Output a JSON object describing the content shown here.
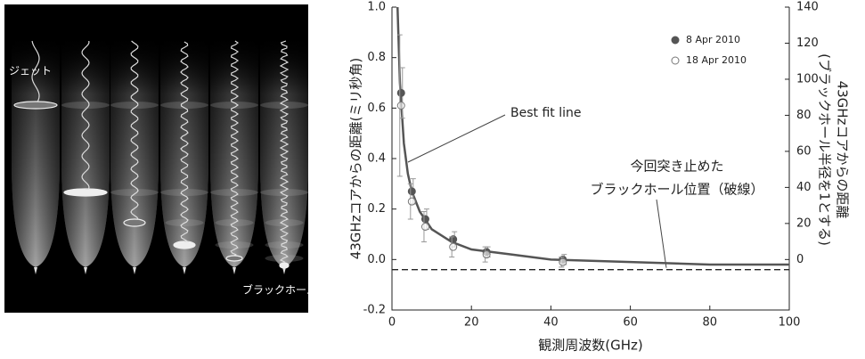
{
  "illustration": {
    "labels": [
      "ジェット",
      "ブラックホール"
    ]
  },
  "chart_data": {
    "type": "scatter",
    "xlabel": "観測周波数(GHz)",
    "ylabel": "43GHzコアからの距離(ミリ秒角)",
    "y2label": [
      "43GHzコアからの距離",
      "(ブラックホール半径を1とする)"
    ],
    "x": [
      2.3,
      5,
      8.4,
      15.4,
      23.8,
      43
    ],
    "series": [
      {
        "name": "8 Apr 2010",
        "color": "#555555",
        "marker": "filled",
        "values": [
          0.66,
          0.27,
          0.16,
          0.08,
          0.03,
          0.0
        ],
        "errors": [
          0.1,
          0.05,
          0.04,
          0.03,
          0.02,
          0.02
        ]
      },
      {
        "name": "18 Apr 2010",
        "color": "#777777",
        "marker": "open",
        "values": [
          0.61,
          0.23,
          0.13,
          0.05,
          0.02,
          -0.01
        ],
        "errors": [
          0.28,
          0.07,
          0.06,
          0.04,
          0.03,
          0.02
        ]
      }
    ],
    "fit": {
      "label": "Best fit line",
      "color": "#555555",
      "x": [
        1.4,
        2,
        3,
        4,
        5,
        7,
        10,
        15,
        20,
        30,
        40,
        60,
        80,
        100
      ],
      "values": [
        1.0,
        0.7,
        0.46,
        0.34,
        0.27,
        0.19,
        0.12,
        0.07,
        0.04,
        0.02,
        0.0,
        -0.01,
        -0.02,
        -0.02
      ]
    },
    "hline": {
      "value": -0.04,
      "label": [
        "今回突き止めた",
        "ブラックホール位置（破線）"
      ]
    },
    "xlim": [
      0,
      100
    ],
    "xticks": [
      0,
      20,
      40,
      60,
      80,
      100
    ],
    "ylim": [
      -0.2,
      1.0
    ],
    "yticks": [
      -0.2,
      {
        "value": 0,
        "label": "0.0"
      },
      0.2,
      0.4,
      0.6,
      0.8,
      {
        "value": 1,
        "label": "1.0"
      }
    ],
    "y2lim": [
      -28,
      140
    ],
    "y2ticks": [
      0,
      20,
      40,
      60,
      80,
      100,
      120,
      140
    ],
    "legend": "upper right"
  }
}
